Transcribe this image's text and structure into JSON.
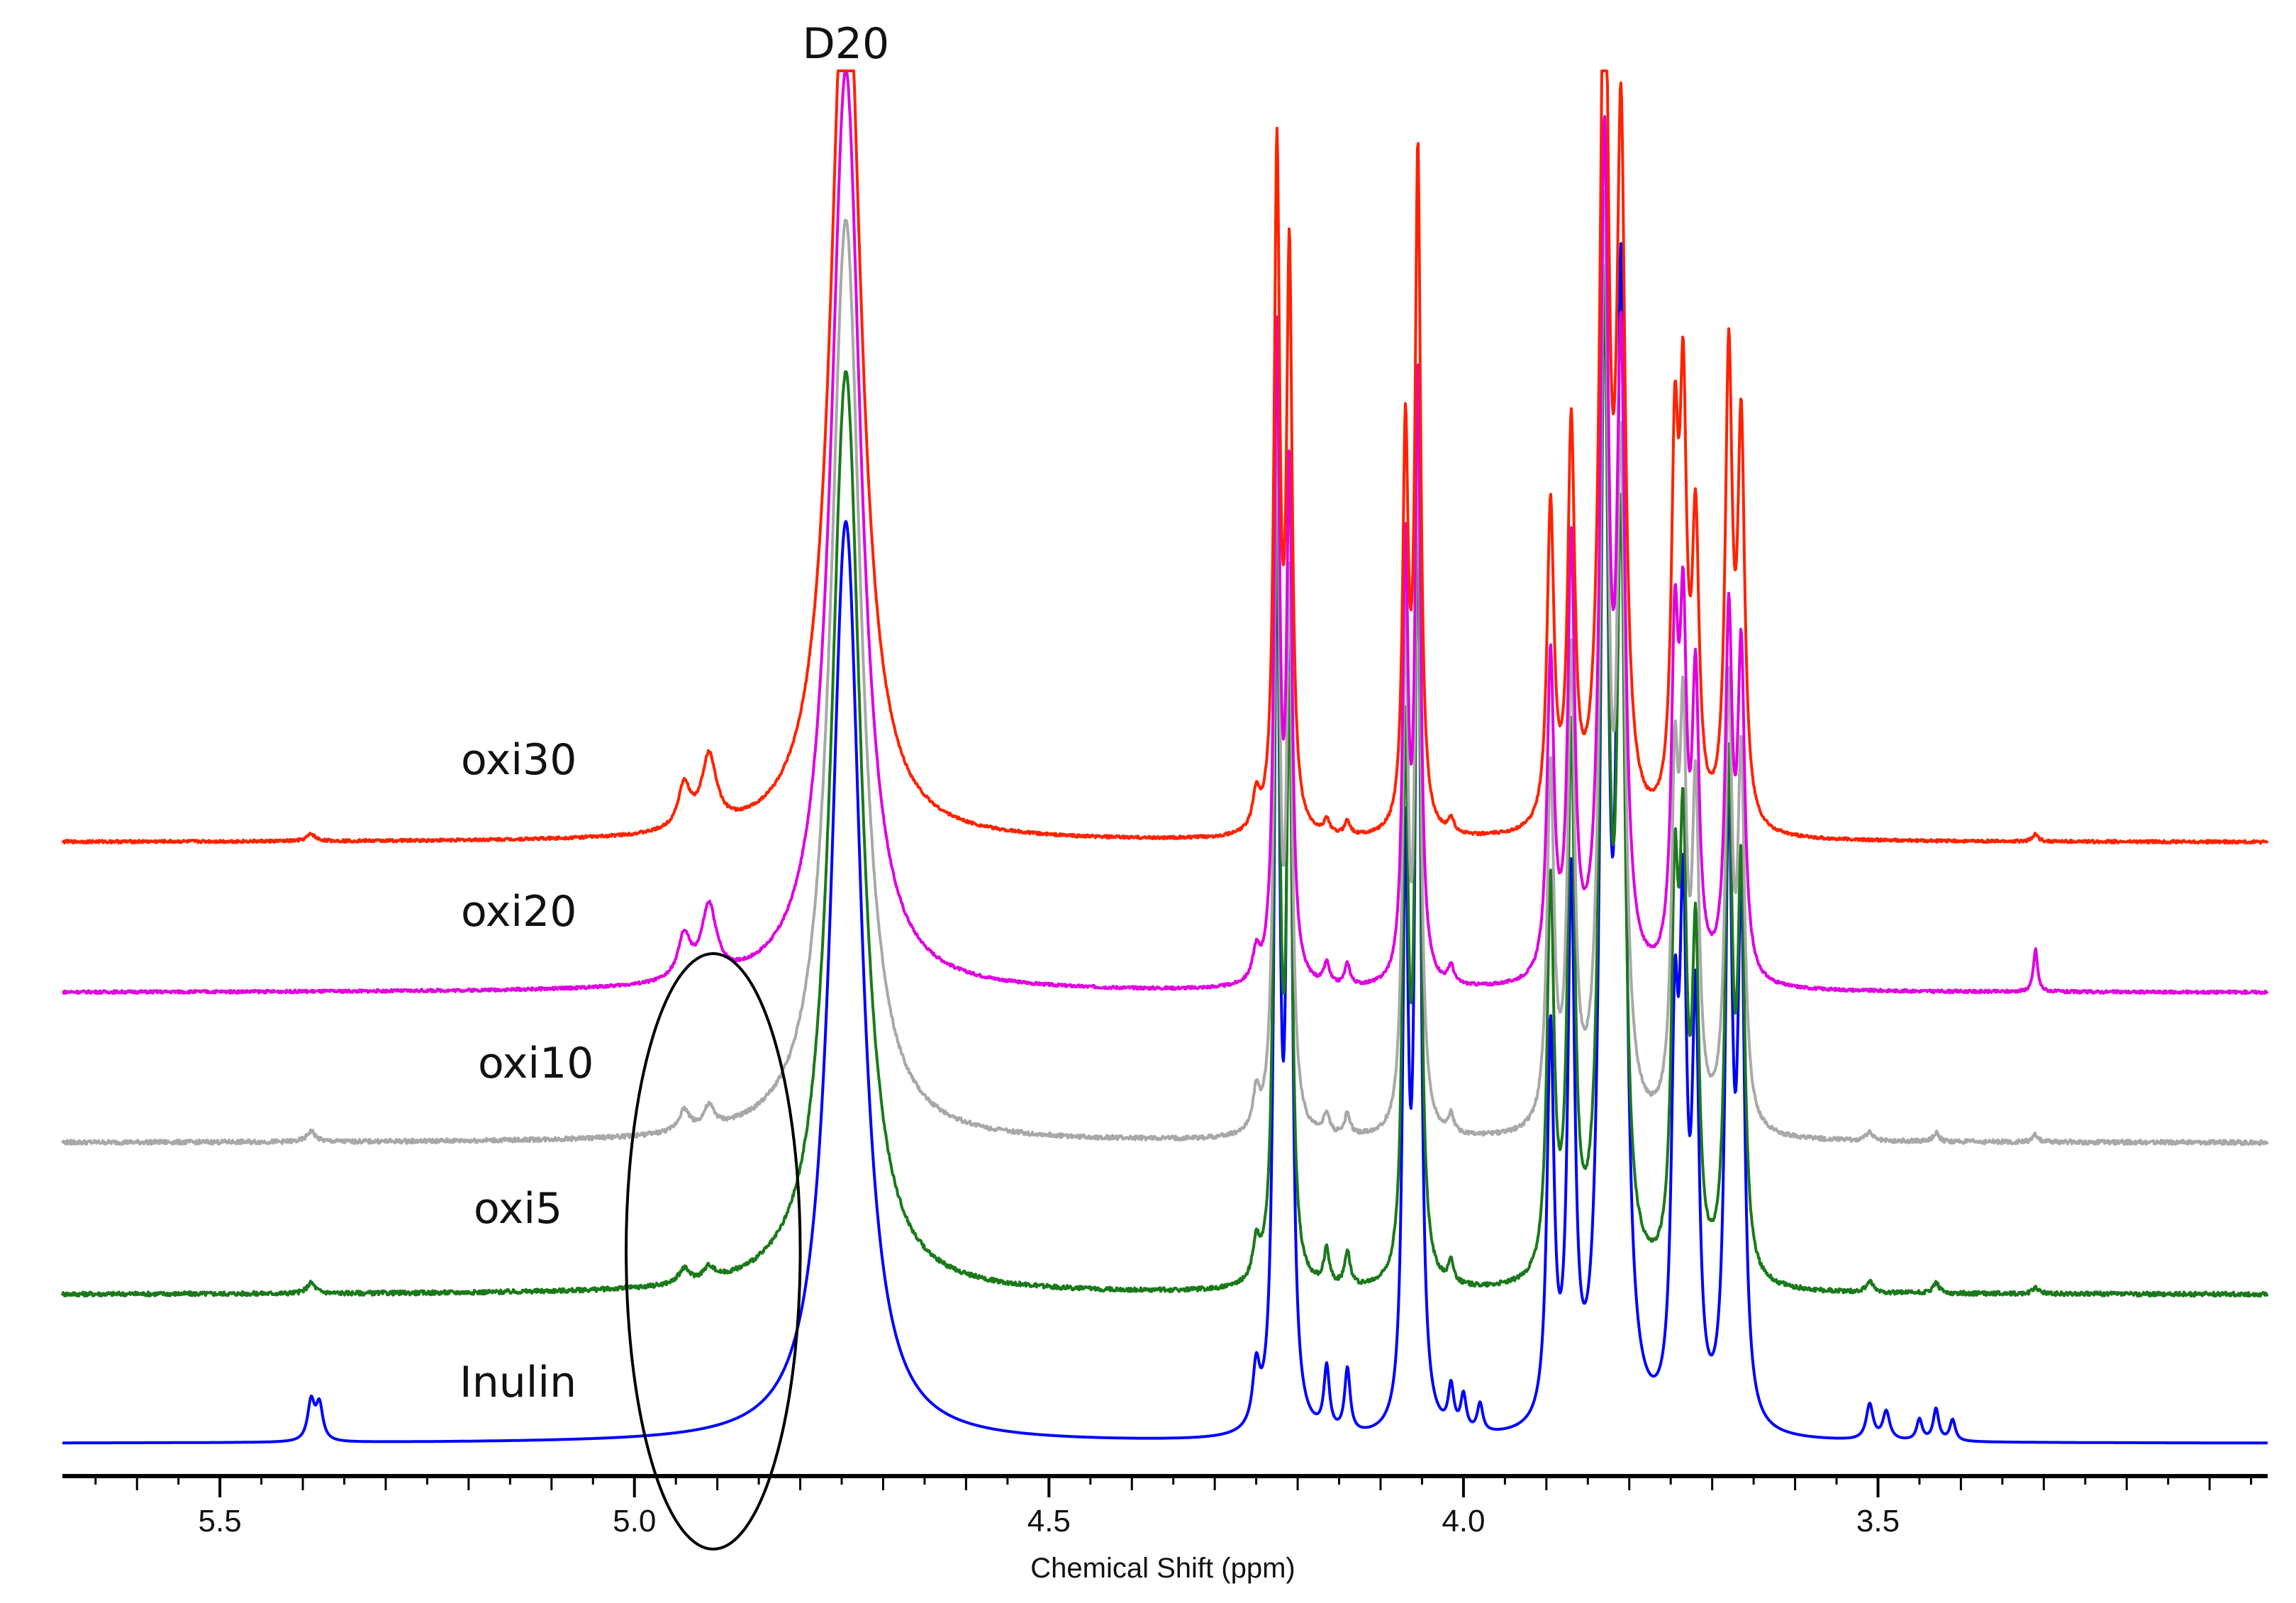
{
  "chart_data": {
    "type": "line",
    "title": "",
    "xlabel": "Chemical Shift (ppm)",
    "ylabel": "",
    "xlim": [
      5.69,
      3.03
    ],
    "x_reversed": true,
    "grid": false,
    "legend": "inline labels at left of each trace",
    "x_ticks": [
      {
        "value": 5.5,
        "label": "5.5"
      },
      {
        "value": 5.0,
        "label": "5.0"
      },
      {
        "value": 4.5,
        "label": "4.5"
      },
      {
        "value": 4.0,
        "label": "4.0"
      },
      {
        "value": 3.5,
        "label": "3.5"
      }
    ],
    "minor_tick_step": 0.05,
    "annotations": [
      {
        "text": "D20",
        "x": 4.745
      },
      {
        "type": "ellipse",
        "x_center": 4.905,
        "x_halfwidth": 0.105,
        "note": "region of oxidised signals 4.8-5.0 ppm"
      }
    ],
    "series": [
      {
        "name": "Inulin",
        "color": "#0000ff",
        "baseline": 0,
        "noise": 0,
        "peaks": [
          [
            5.39,
            0.055,
            0.005
          ],
          [
            5.38,
            0.05,
            0.005
          ],
          [
            4.745,
            1.3,
            0.022
          ],
          [
            4.25,
            0.08,
            0.005
          ],
          [
            4.225,
            1.25,
            0.004
          ],
          [
            4.21,
            1.15,
            0.004
          ],
          [
            4.165,
            0.09,
            0.004
          ],
          [
            4.14,
            0.09,
            0.004
          ],
          [
            4.07,
            0.8,
            0.004
          ],
          [
            4.055,
            1.35,
            0.004
          ],
          [
            4.015,
            0.06,
            0.004
          ],
          [
            4.0,
            0.05,
            0.004
          ],
          [
            3.98,
            0.04,
            0.004
          ],
          [
            3.895,
            0.55,
            0.005
          ],
          [
            3.87,
            0.75,
            0.005
          ],
          [
            3.83,
            1.5,
            0.006
          ],
          [
            3.81,
            1.55,
            0.006
          ],
          [
            3.745,
            0.5,
            0.005
          ],
          [
            3.735,
            0.65,
            0.005
          ],
          [
            3.72,
            0.55,
            0.005
          ],
          [
            3.68,
            0.85,
            0.005
          ],
          [
            3.665,
            0.7,
            0.005
          ],
          [
            3.51,
            0.05,
            0.005
          ],
          [
            3.49,
            0.04,
            0.005
          ],
          [
            3.45,
            0.03,
            0.004
          ],
          [
            3.43,
            0.045,
            0.004
          ],
          [
            3.41,
            0.03,
            0.004
          ]
        ]
      },
      {
        "name": "oxi5",
        "color": "#1a7a1a",
        "baseline": 1,
        "noise": 0.003,
        "peaks": [
          [
            5.39,
            0.015,
            0.006
          ],
          [
            4.94,
            0.02,
            0.008
          ],
          [
            4.91,
            0.018,
            0.008
          ],
          [
            4.745,
            1.3,
            0.022
          ],
          [
            4.25,
            0.05,
            0.005
          ],
          [
            4.225,
            1.1,
            0.004
          ],
          [
            4.21,
            0.8,
            0.004
          ],
          [
            4.165,
            0.05,
            0.004
          ],
          [
            4.14,
            0.05,
            0.004
          ],
          [
            4.07,
            0.75,
            0.004
          ],
          [
            4.055,
            1.1,
            0.004
          ],
          [
            4.015,
            0.03,
            0.004
          ],
          [
            3.895,
            0.55,
            0.005
          ],
          [
            3.87,
            0.75,
            0.005
          ],
          [
            3.83,
            1.35,
            0.006
          ],
          [
            3.81,
            1.0,
            0.006
          ],
          [
            3.745,
            0.5,
            0.005
          ],
          [
            3.735,
            0.55,
            0.005
          ],
          [
            3.72,
            0.45,
            0.005
          ],
          [
            3.68,
            0.7,
            0.005
          ],
          [
            3.665,
            0.55,
            0.005
          ],
          [
            3.51,
            0.015,
            0.005
          ],
          [
            3.43,
            0.015,
            0.004
          ],
          [
            3.31,
            0.01,
            0.004
          ]
        ]
      },
      {
        "name": "oxi10",
        "color": "#a8a8a8",
        "baseline": 2,
        "noise": 0.003,
        "peaks": [
          [
            5.39,
            0.015,
            0.006
          ],
          [
            4.94,
            0.03,
            0.008
          ],
          [
            4.91,
            0.03,
            0.008
          ],
          [
            4.745,
            1.3,
            0.022
          ],
          [
            4.25,
            0.05,
            0.005
          ],
          [
            4.225,
            1.0,
            0.004
          ],
          [
            4.21,
            0.75,
            0.004
          ],
          [
            4.165,
            0.03,
            0.004
          ],
          [
            4.14,
            0.03,
            0.004
          ],
          [
            4.07,
            0.7,
            0.004
          ],
          [
            4.055,
            0.95,
            0.004
          ],
          [
            4.015,
            0.025,
            0.004
          ],
          [
            3.895,
            0.5,
            0.005
          ],
          [
            3.87,
            0.65,
            0.005
          ],
          [
            3.83,
            1.25,
            0.006
          ],
          [
            3.81,
            0.9,
            0.006
          ],
          [
            3.745,
            0.45,
            0.005
          ],
          [
            3.735,
            0.5,
            0.005
          ],
          [
            3.72,
            0.45,
            0.005
          ],
          [
            3.68,
            0.6,
            0.005
          ],
          [
            3.665,
            0.5,
            0.005
          ],
          [
            3.51,
            0.012,
            0.005
          ],
          [
            3.43,
            0.012,
            0.004
          ],
          [
            3.31,
            0.01,
            0.004
          ]
        ]
      },
      {
        "name": "oxi20",
        "color": "#e000e0",
        "baseline": 3,
        "noise": 0.002,
        "peaks": [
          [
            4.94,
            0.06,
            0.009
          ],
          [
            4.91,
            0.1,
            0.011
          ],
          [
            4.745,
            1.3,
            0.022
          ],
          [
            4.25,
            0.04,
            0.005
          ],
          [
            4.225,
            0.9,
            0.004
          ],
          [
            4.21,
            0.7,
            0.004
          ],
          [
            4.165,
            0.03,
            0.004
          ],
          [
            4.14,
            0.03,
            0.004
          ],
          [
            4.07,
            0.6,
            0.004
          ],
          [
            4.055,
            0.85,
            0.004
          ],
          [
            4.015,
            0.025,
            0.004
          ],
          [
            3.895,
            0.45,
            0.005
          ],
          [
            3.87,
            0.6,
            0.005
          ],
          [
            3.83,
            1.15,
            0.006
          ],
          [
            3.81,
            0.85,
            0.006
          ],
          [
            3.745,
            0.45,
            0.005
          ],
          [
            3.735,
            0.45,
            0.005
          ],
          [
            3.72,
            0.4,
            0.005
          ],
          [
            3.68,
            0.5,
            0.005
          ],
          [
            3.665,
            0.45,
            0.005
          ],
          [
            3.31,
            0.06,
            0.003
          ]
        ]
      },
      {
        "name": "oxi30",
        "color": "#ff2200",
        "baseline": 4,
        "noise": 0.002,
        "peaks": [
          [
            5.39,
            0.01,
            0.006
          ],
          [
            4.94,
            0.06,
            0.009
          ],
          [
            4.91,
            0.1,
            0.011
          ],
          [
            4.745,
            1.3,
            0.022
          ],
          [
            4.25,
            0.05,
            0.005
          ],
          [
            4.225,
            0.95,
            0.004
          ],
          [
            4.21,
            0.8,
            0.004
          ],
          [
            4.165,
            0.02,
            0.004
          ],
          [
            4.14,
            0.02,
            0.004
          ],
          [
            4.07,
            0.55,
            0.004
          ],
          [
            4.055,
            0.95,
            0.004
          ],
          [
            4.015,
            0.02,
            0.004
          ],
          [
            3.895,
            0.45,
            0.005
          ],
          [
            3.87,
            0.55,
            0.005
          ],
          [
            3.83,
            1.3,
            0.006
          ],
          [
            3.81,
            0.95,
            0.006
          ],
          [
            3.745,
            0.5,
            0.005
          ],
          [
            3.735,
            0.55,
            0.005
          ],
          [
            3.72,
            0.4,
            0.005
          ],
          [
            3.68,
            0.65,
            0.005
          ],
          [
            3.665,
            0.55,
            0.005
          ],
          [
            3.31,
            0.01,
            0.004
          ]
        ]
      }
    ]
  }
}
